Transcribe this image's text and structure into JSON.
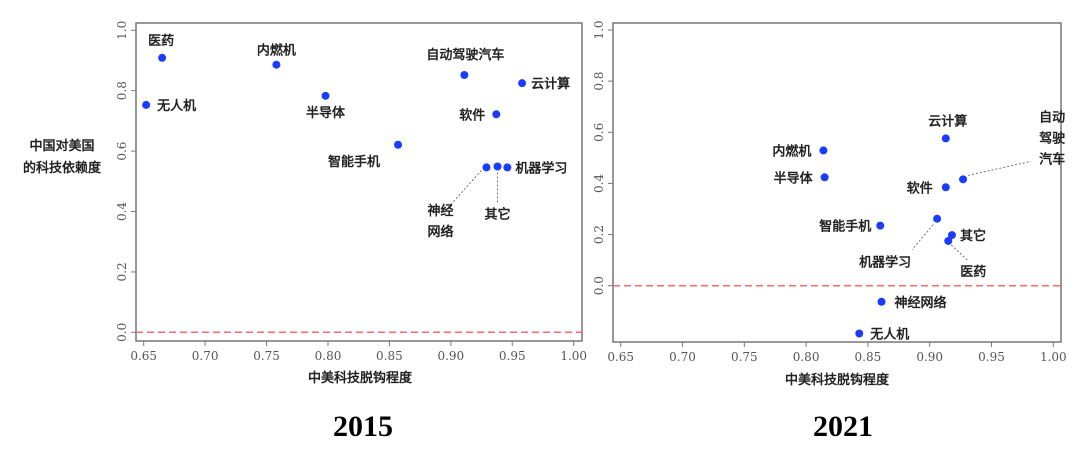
{
  "chart_data": [
    {
      "type": "scatter",
      "title": "2015",
      "xlabel": "中美科技脱钩程度",
      "ylabel": [
        "中国对美国",
        "的科技依赖度"
      ],
      "xlim": [
        0.65,
        1.0
      ],
      "ylim": [
        0.0,
        1.0
      ],
      "xticks": [
        "0.65",
        "0.70",
        "0.75",
        "0.80",
        "0.85",
        "0.90",
        "0.95",
        "1.00"
      ],
      "yticks": [
        "0.0",
        "0.2",
        "0.4",
        "0.6",
        "0.8",
        "1.0"
      ],
      "reference_line": {
        "y": 0.0,
        "style": "dashed",
        "color": "#ff6666"
      },
      "point_color": "#1a3cff",
      "grid": false,
      "points": [
        {
          "label": [
            "医药"
          ],
          "x": 0.665,
          "y": 0.909
        },
        {
          "label": [
            "无人机"
          ],
          "x": 0.652,
          "y": 0.753
        },
        {
          "label": [
            "内燃机"
          ],
          "x": 0.758,
          "y": 0.886
        },
        {
          "label": [
            "半导体"
          ],
          "x": 0.798,
          "y": 0.783
        },
        {
          "label": [
            "自动驾驶汽车"
          ],
          "x": 0.911,
          "y": 0.852
        },
        {
          "label": [
            "云计算"
          ],
          "x": 0.958,
          "y": 0.825
        },
        {
          "label": [
            "软件"
          ],
          "x": 0.937,
          "y": 0.722
        },
        {
          "label": [
            "智能手机"
          ],
          "x": 0.857,
          "y": 0.621
        },
        {
          "label": [
            "神经",
            "网络"
          ],
          "x": 0.929,
          "y": 0.546
        },
        {
          "label": [
            "其它"
          ],
          "x": 0.938,
          "y": 0.549
        },
        {
          "label": [
            "机器学习"
          ],
          "x": 0.946,
          "y": 0.546
        }
      ]
    },
    {
      "type": "scatter",
      "title": "2021",
      "xlabel": "中美科技脱钩程度",
      "ylabel": [],
      "xlim": [
        0.65,
        1.0
      ],
      "ylim": [
        -0.22,
        1.0
      ],
      "xticks": [
        "0.65",
        "0.70",
        "0.75",
        "0.80",
        "0.85",
        "0.90",
        "0.95",
        "1.00"
      ],
      "yticks": [
        "0.0",
        "0.2",
        "0.4",
        "0.6",
        "0.8",
        "1.0"
      ],
      "reference_line": {
        "y": 0.0,
        "style": "dashed",
        "color": "#ff6666"
      },
      "point_color": "#1a3cff",
      "grid": false,
      "points": [
        {
          "label": [
            "云计算"
          ],
          "x": 0.913,
          "y": 0.576
        },
        {
          "label": [
            "内燃机"
          ],
          "x": 0.814,
          "y": 0.529
        },
        {
          "label": [
            "半导体"
          ],
          "x": 0.815,
          "y": 0.424
        },
        {
          "label": [
            "自动",
            "驾驶",
            "汽车"
          ],
          "x": 0.927,
          "y": 0.416
        },
        {
          "label": [
            "软件"
          ],
          "x": 0.913,
          "y": 0.385
        },
        {
          "label": [
            "智能手机"
          ],
          "x": 0.86,
          "y": 0.235
        },
        {
          "label": [
            "机器学习"
          ],
          "x": 0.906,
          "y": 0.262
        },
        {
          "label": [
            "其它"
          ],
          "x": 0.918,
          "y": 0.198
        },
        {
          "label": [
            "医药"
          ],
          "x": 0.915,
          "y": 0.175
        },
        {
          "label": [
            "神经网络"
          ],
          "x": 0.861,
          "y": -0.063
        },
        {
          "label": [
            "无人机"
          ],
          "x": 0.843,
          "y": -0.187
        }
      ]
    }
  ]
}
